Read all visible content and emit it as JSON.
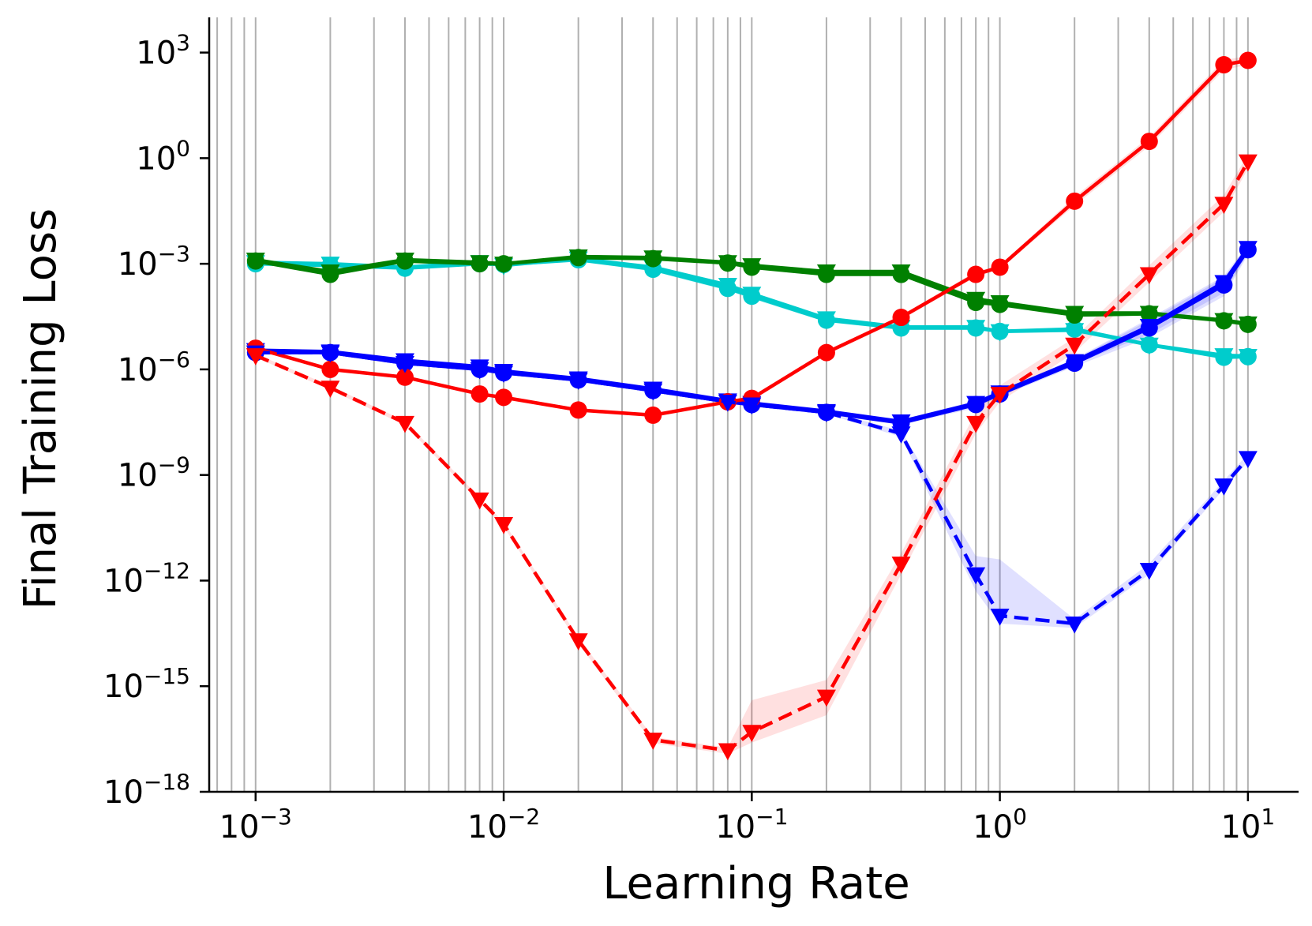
{
  "chart_data": {
    "type": "line",
    "xlabel": "Learning Rate",
    "ylabel": "Final Training Loss",
    "x_scale": "log",
    "y_scale": "log",
    "xlim": [
      0.00065,
      16
    ],
    "ylim": [
      1e-18,
      10000
    ],
    "x_ticks": [
      {
        "value": 0.001,
        "base": "10",
        "exp": "−3"
      },
      {
        "value": 0.01,
        "base": "10",
        "exp": "−2"
      },
      {
        "value": 0.1,
        "base": "10",
        "exp": "−1"
      },
      {
        "value": 1,
        "base": "10",
        "exp": "0"
      },
      {
        "value": 10,
        "base": "10",
        "exp": "1"
      }
    ],
    "y_ticks": [
      {
        "value": 1e-18,
        "base": "10",
        "exp": "−18"
      },
      {
        "value": 1e-15,
        "base": "10",
        "exp": "−15"
      },
      {
        "value": 1e-12,
        "base": "10",
        "exp": "−12"
      },
      {
        "value": 1e-09,
        "base": "10",
        "exp": "−9"
      },
      {
        "value": 1e-06,
        "base": "10",
        "exp": "−6"
      },
      {
        "value": 0.001,
        "base": "10",
        "exp": "−3"
      },
      {
        "value": 1,
        "base": "10",
        "exp": "0"
      },
      {
        "value": 1000,
        "base": "10",
        "exp": "3"
      }
    ],
    "grid": "vertical-minor-and-major",
    "legend": "none",
    "x": [
      0.001,
      0.002,
      0.004,
      0.008,
      0.01,
      0.02,
      0.04,
      0.08,
      0.1,
      0.2,
      0.4,
      0.8,
      1,
      2,
      4,
      8,
      10
    ],
    "series": [
      {
        "color": "#00cccc",
        "line": "solid",
        "marker": "circle",
        "values": [
          0.001,
          0.0009,
          0.00075,
          0.001,
          0.00095,
          0.0013,
          0.0007,
          0.0002,
          0.00012,
          2.5e-05,
          1.5e-05,
          1.5e-05,
          1.2e-05,
          1.4e-05,
          5e-06,
          2.2e-06,
          2.3e-06
        ],
        "band_low": [
          0.0009,
          0.0008,
          0.0007,
          0.0009,
          0.00085,
          0.0012,
          0.0006,
          0.00017,
          0.0001,
          2.2e-05,
          1.3e-05,
          1.3e-05,
          1.1e-05,
          1.2e-05,
          4.5e-06,
          2e-06,
          2.1e-06
        ],
        "band_high": [
          0.0011,
          0.001,
          0.0008,
          0.0011,
          0.001,
          0.0014,
          0.0008,
          0.00023,
          0.00014,
          2.8e-05,
          1.7e-05,
          1.7e-05,
          1.3e-05,
          1.6e-05,
          5.5e-06,
          2.4e-06,
          2.5e-06
        ]
      },
      {
        "color": "#00cccc",
        "line": "solid",
        "marker": "triangle-down",
        "values": [
          0.0011,
          0.001,
          0.0008,
          0.0011,
          0.0009,
          0.0014,
          0.0008,
          0.00025,
          0.00014,
          2.8e-05,
          1.6e-05,
          1.6e-05,
          1.2e-05,
          1.3e-05,
          5e-06,
          2.5e-06,
          2.4e-06
        ],
        "band_low": [
          0.001,
          0.0009,
          0.0007,
          0.001,
          0.0008,
          0.0013,
          0.0007,
          0.00022,
          0.00012,
          2.5e-05,
          1.4e-05,
          1.4e-05,
          1.1e-05,
          1.2e-05,
          4.5e-06,
          2.2e-06,
          2.2e-06
        ],
        "band_high": [
          0.0012,
          0.0011,
          0.0009,
          0.0012,
          0.001,
          0.0015,
          0.0009,
          0.00028,
          0.00016,
          3.1e-05,
          1.8e-05,
          1.8e-05,
          1.3e-05,
          1.4e-05,
          5.5e-06,
          2.8e-06,
          2.6e-06
        ]
      },
      {
        "color": "#008000",
        "line": "solid",
        "marker": "circle",
        "values": [
          0.0012,
          0.0005,
          0.0012,
          0.001,
          0.001,
          0.0015,
          0.0014,
          0.00105,
          0.0008,
          0.0005,
          0.0005,
          8e-05,
          7e-05,
          3.5e-05,
          3.8e-05,
          2.4e-05,
          1.9e-05
        ],
        "band_low": [
          0.0011,
          0.00045,
          0.0011,
          0.0009,
          0.0009,
          0.0014,
          0.0013,
          0.00095,
          0.0007,
          0.00045,
          0.00045,
          7e-05,
          6e-05,
          3.2e-05,
          3.4e-05,
          2.2e-05,
          1.7e-05
        ],
        "band_high": [
          0.0013,
          0.00055,
          0.0013,
          0.0011,
          0.0011,
          0.0016,
          0.0015,
          0.00115,
          0.0009,
          0.00055,
          0.00055,
          9e-05,
          8e-05,
          3.8e-05,
          4.2e-05,
          2.6e-05,
          2.1e-05
        ]
      },
      {
        "color": "#008000",
        "line": "solid",
        "marker": "triangle-down",
        "values": [
          0.0013,
          0.0006,
          0.0013,
          0.0011,
          0.001,
          0.0016,
          0.0015,
          0.0011,
          0.0009,
          0.0006,
          0.0006,
          0.0001,
          8e-05,
          4e-05,
          4e-05,
          2.5e-05,
          2e-05
        ],
        "band_low": [
          0.0012,
          0.00055,
          0.0012,
          0.001,
          0.0009,
          0.0015,
          0.0014,
          0.001,
          0.0008,
          0.00055,
          0.00055,
          9e-05,
          7e-05,
          3.6e-05,
          3.6e-05,
          2.3e-05,
          1.8e-05
        ],
        "band_high": [
          0.0014,
          0.00065,
          0.0014,
          0.0012,
          0.0011,
          0.0017,
          0.0016,
          0.0012,
          0.001,
          0.00065,
          0.00065,
          0.00011,
          9e-05,
          4.4e-05,
          4.4e-05,
          2.7e-05,
          2.2e-05
        ]
      },
      {
        "color": "#0000ff",
        "line": "solid",
        "marker": "circle",
        "values": [
          3e-06,
          3e-06,
          1.5e-06,
          1e-06,
          8e-07,
          5e-07,
          2.5e-07,
          1.2e-07,
          1e-07,
          6e-08,
          3e-08,
          1e-07,
          2e-07,
          1.5e-06,
          1.5e-05,
          0.00025,
          0.0025
        ],
        "band_low": [
          2.7e-06,
          2.7e-06,
          1.35e-06,
          9e-07,
          7.2e-07,
          4.5e-07,
          2.2e-07,
          1.1e-07,
          9e-08,
          5.4e-08,
          2.7e-08,
          8e-08,
          1.7e-07,
          1.2e-06,
          8e-06,
          0.00012,
          0.0018
        ],
        "band_high": [
          3.3e-06,
          3.3e-06,
          1.65e-06,
          1.1e-06,
          8.8e-07,
          5.5e-07,
          2.8e-07,
          1.3e-07,
          1.1e-07,
          6.6e-08,
          3.3e-08,
          1.2e-07,
          2.3e-07,
          1.9e-06,
          2.5e-05,
          0.0004,
          0.0032
        ]
      },
      {
        "color": "#0000ff",
        "line": "solid",
        "marker": "triangle-down",
        "values": [
          3.5e-06,
          3.2e-06,
          1.8e-06,
          1.2e-06,
          9e-07,
          5.5e-07,
          2.8e-07,
          1.3e-07,
          1.1e-07,
          6.5e-08,
          3.3e-08,
          1.1e-07,
          2.2e-07,
          1.7e-06,
          1.7e-05,
          0.0003,
          0.0028
        ],
        "band_low": [
          3.1e-06,
          2.9e-06,
          1.6e-06,
          1.1e-06,
          8e-07,
          5e-07,
          2.5e-07,
          1.2e-07,
          1e-07,
          5.8e-08,
          3e-08,
          9e-08,
          1.9e-07,
          1.4e-06,
          1e-05,
          0.00015,
          0.002
        ],
        "band_high": [
          3.9e-06,
          3.5e-06,
          2e-06,
          1.3e-06,
          1e-06,
          6e-07,
          3.1e-07,
          1.4e-07,
          1.2e-07,
          7.2e-08,
          3.6e-08,
          1.3e-07,
          2.5e-07,
          2e-06,
          2.8e-05,
          0.00045,
          0.0036
        ]
      },
      {
        "color": "#ff0000",
        "line": "solid",
        "marker": "circle",
        "values": [
          4e-06,
          1e-06,
          6e-07,
          2e-07,
          1.6e-07,
          7e-08,
          5e-08,
          1.2e-07,
          1.5e-07,
          3e-06,
          3e-05,
          0.0005,
          0.0008,
          0.06,
          3,
          450,
          600
        ],
        "band_low": [
          3.6e-06,
          9e-07,
          5.4e-07,
          1.8e-07,
          1.4e-07,
          6.3e-08,
          4.5e-08,
          1.1e-07,
          1.35e-07,
          2.6e-06,
          2.6e-05,
          0.00042,
          0.0007,
          0.045,
          2.2,
          320,
          450
        ],
        "band_high": [
          4.4e-06,
          1.1e-06,
          6.6e-07,
          2.2e-07,
          1.8e-07,
          7.7e-08,
          5.5e-08,
          1.3e-07,
          1.65e-07,
          3.4e-06,
          3.4e-05,
          0.0006,
          0.0009,
          0.08,
          4,
          620,
          800
        ]
      },
      {
        "color": "#0000ff",
        "line": "dashed",
        "marker": "triangle-down",
        "values": [
          3e-06,
          3e-06,
          1.5e-06,
          1e-06,
          8e-07,
          5e-07,
          2.5e-07,
          1.2e-07,
          1e-07,
          6e-08,
          1.5e-08,
          1.5e-12,
          1e-13,
          6e-14,
          2e-12,
          5e-10,
          3e-09
        ],
        "band_low": [
          2.7e-06,
          2.7e-06,
          1.35e-06,
          9e-07,
          7.2e-07,
          4.5e-07,
          2.2e-07,
          1.1e-07,
          9e-08,
          5.4e-08,
          1.2e-08,
          5e-13,
          6e-14,
          4.5e-14,
          1.5e-12,
          4e-10,
          2.4e-09
        ],
        "band_high": [
          3.3e-06,
          3.3e-06,
          1.65e-06,
          1.1e-06,
          8.8e-07,
          5.5e-07,
          2.8e-07,
          1.3e-07,
          1.1e-07,
          6.6e-08,
          1.8e-08,
          5e-12,
          4e-12,
          8e-14,
          3e-12,
          7e-10,
          4e-09
        ]
      },
      {
        "color": "#ff0000",
        "line": "dashed",
        "marker": "triangle-down",
        "values": [
          2.5e-06,
          3e-07,
          3e-08,
          2e-10,
          4e-11,
          2e-14,
          3e-17,
          1.5e-17,
          5e-17,
          5e-16,
          3e-12,
          3e-08,
          2e-07,
          5e-06,
          0.0005,
          0.05,
          0.8
        ],
        "band_low": [
          2.2e-06,
          2.6e-07,
          2.6e-08,
          1.7e-10,
          3.4e-11,
          1.6e-14,
          2.4e-17,
          1.2e-17,
          2.5e-17,
          1.5e-16,
          1.5e-12,
          1.5e-08,
          1.2e-07,
          3e-06,
          0.0003,
          0.03,
          0.5
        ],
        "band_high": [
          2.8e-06,
          3.4e-07,
          3.4e-08,
          2.3e-10,
          4.6e-11,
          2.4e-14,
          3.6e-17,
          1.8e-17,
          4e-16,
          1.5e-15,
          6e-12,
          6e-08,
          3.5e-07,
          8e-06,
          0.0009,
          0.09,
          1.3
        ]
      }
    ]
  }
}
